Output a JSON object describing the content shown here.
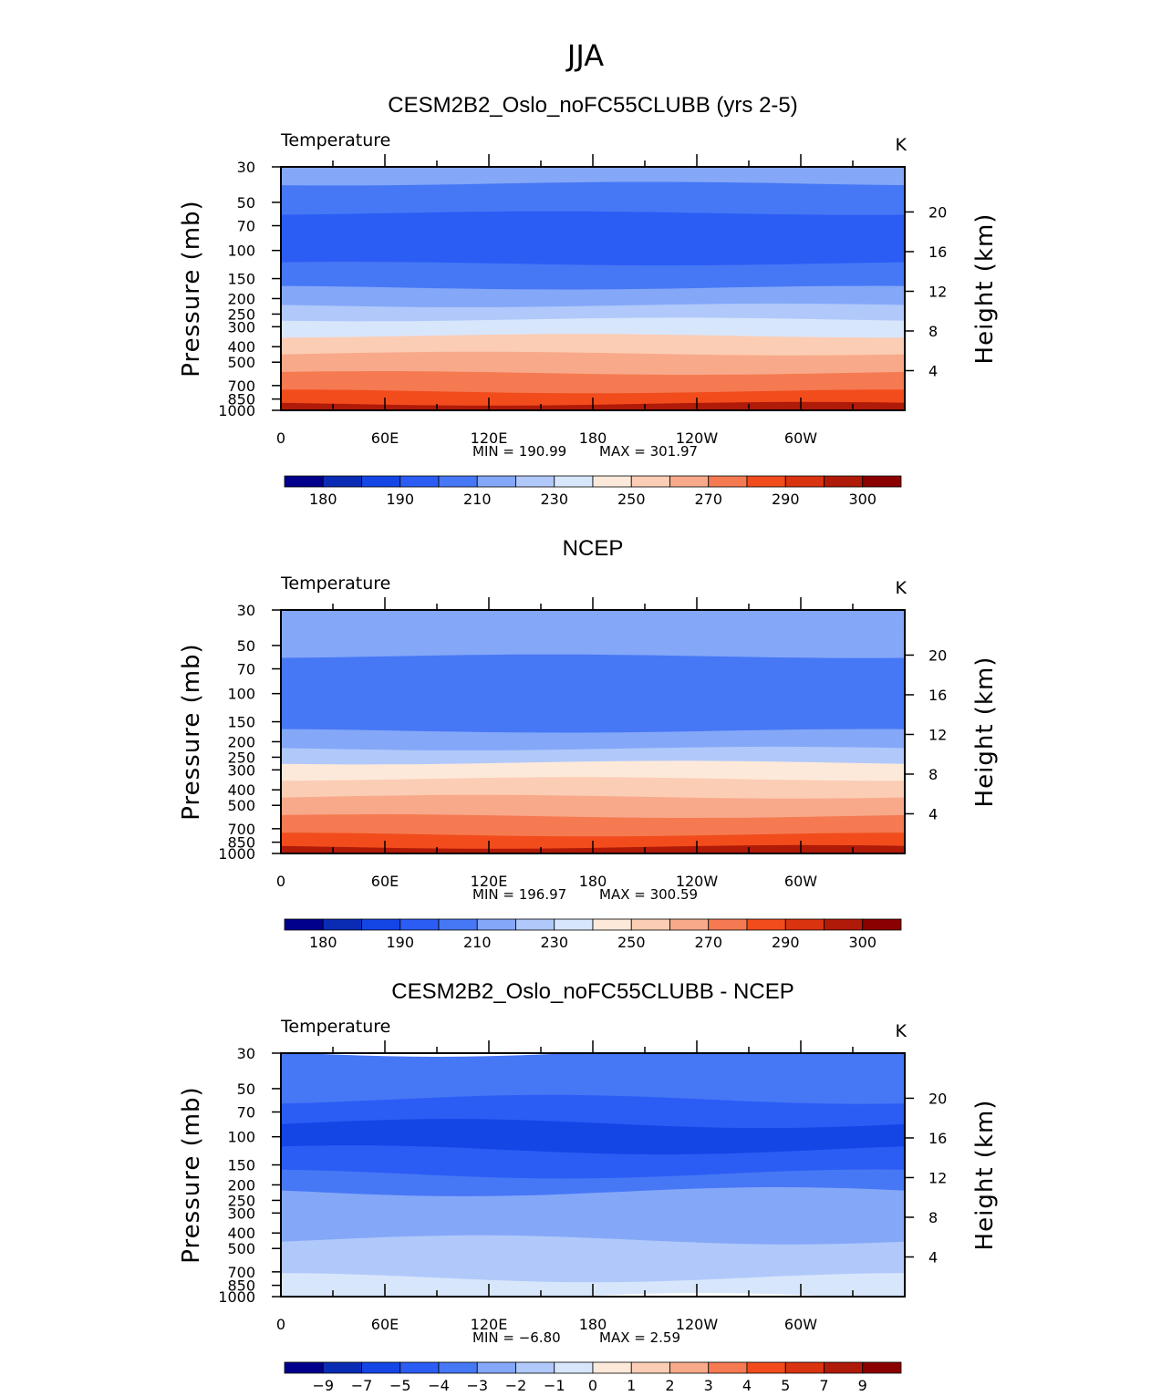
{
  "page": {
    "title": "JJA"
  },
  "chart_data": [
    {
      "type": "contour",
      "title": "CESM2B2_Oslo_noFC55CLUBB (yrs 2-5)",
      "left_label": "Temperature",
      "right_label": "K",
      "ylabel": "Pressure (mb)",
      "ylabel_right": "Height (km)",
      "x_ticks": [
        "0",
        "60E",
        "120E",
        "180",
        "120W",
        "60W"
      ],
      "y_ticks": [
        "30",
        "50",
        "70",
        "100",
        "150",
        "200",
        "250",
        "300",
        "400",
        "500",
        "700",
        "850",
        "1000"
      ],
      "y_right_ticks": [
        "20",
        "16",
        "12",
        "8",
        "4"
      ],
      "min_label": "MIN = 190.99",
      "max_label": "MAX = 301.97",
      "min": 190.99,
      "max": 301.97,
      "colorbar_labels": [
        "180",
        "190",
        "210",
        "230",
        "250",
        "270",
        "290",
        "300"
      ],
      "levels_by_pressure": [
        {
          "p": 30,
          "t": 214
        },
        {
          "p": 50,
          "t": 208
        },
        {
          "p": 70,
          "t": 198
        },
        {
          "p": 100,
          "t": 196
        },
        {
          "p": 150,
          "t": 206
        },
        {
          "p": 200,
          "t": 214
        },
        {
          "p": 250,
          "t": 226
        },
        {
          "p": 300,
          "t": 238
        },
        {
          "p": 400,
          "t": 252
        },
        {
          "p": 500,
          "t": 262
        },
        {
          "p": 700,
          "t": 276
        },
        {
          "p": 850,
          "t": 288
        },
        {
          "p": 1000,
          "t": 296
        }
      ]
    },
    {
      "type": "contour",
      "title": "NCEP",
      "left_label": "Temperature",
      "right_label": "K",
      "ylabel": "Pressure (mb)",
      "ylabel_right": "Height (km)",
      "x_ticks": [
        "0",
        "60E",
        "120E",
        "180",
        "120W",
        "60W"
      ],
      "y_ticks": [
        "30",
        "50",
        "70",
        "100",
        "150",
        "200",
        "250",
        "300",
        "400",
        "500",
        "700",
        "850",
        "1000"
      ],
      "y_right_ticks": [
        "20",
        "16",
        "12",
        "8",
        "4"
      ],
      "min_label": "MIN = 196.97",
      "max_label": "MAX = 300.59",
      "min": 196.97,
      "max": 300.59,
      "colorbar_labels": [
        "180",
        "190",
        "210",
        "230",
        "250",
        "270",
        "290",
        "300"
      ],
      "levels_by_pressure": [
        {
          "p": 30,
          "t": 218
        },
        {
          "p": 50,
          "t": 210
        },
        {
          "p": 70,
          "t": 206
        },
        {
          "p": 100,
          "t": 200
        },
        {
          "p": 150,
          "t": 207
        },
        {
          "p": 200,
          "t": 216
        },
        {
          "p": 250,
          "t": 228
        },
        {
          "p": 300,
          "t": 240
        },
        {
          "p": 400,
          "t": 254
        },
        {
          "p": 500,
          "t": 264
        },
        {
          "p": 700,
          "t": 278
        },
        {
          "p": 850,
          "t": 289
        },
        {
          "p": 1000,
          "t": 296
        }
      ]
    },
    {
      "type": "contour",
      "title": "CESM2B2_Oslo_noFC55CLUBB - NCEP",
      "left_label": "Temperature",
      "right_label": "K",
      "ylabel": "Pressure (mb)",
      "ylabel_right": "Height (km)",
      "x_ticks": [
        "0",
        "60E",
        "120E",
        "180",
        "120W",
        "60W"
      ],
      "y_ticks": [
        "30",
        "50",
        "70",
        "100",
        "150",
        "200",
        "250",
        "300",
        "400",
        "500",
        "700",
        "850",
        "1000"
      ],
      "y_right_ticks": [
        "20",
        "16",
        "12",
        "8",
        "4"
      ],
      "min_label": "MIN = −6.80",
      "max_label": "MAX = 2.59",
      "min": -6.8,
      "max": 2.59,
      "colorbar_labels": [
        "−9",
        "−7",
        "−5",
        "−4",
        "−3",
        "−2",
        "−1",
        "0",
        "1",
        "2",
        "3",
        "4",
        "5",
        "7",
        "9"
      ],
      "levels_by_pressure": [
        {
          "p": 30,
          "t": -3.5
        },
        {
          "p": 50,
          "t": -3.5
        },
        {
          "p": 70,
          "t": -4.2
        },
        {
          "p": 100,
          "t": -5.5
        },
        {
          "p": 150,
          "t": -4.8
        },
        {
          "p": 200,
          "t": -3.6
        },
        {
          "p": 250,
          "t": -2.8
        },
        {
          "p": 300,
          "t": -2.5
        },
        {
          "p": 400,
          "t": -2.2
        },
        {
          "p": 500,
          "t": -1.6
        },
        {
          "p": 700,
          "t": -1.2
        },
        {
          "p": 850,
          "t": -0.8
        },
        {
          "p": 1000,
          "t": -0.5
        }
      ]
    }
  ],
  "colormap": {
    "abs_edges": [
      175,
      180,
      185,
      190,
      200,
      210,
      220,
      230,
      240,
      250,
      260,
      270,
      280,
      290,
      295,
      300,
      305
    ],
    "diff_edges": [
      -11,
      -9,
      -8,
      -7,
      -6,
      -5,
      -4.5,
      -4,
      -3.5,
      -3,
      -2.5,
      -2,
      -1.5,
      -1,
      -0.5,
      0,
      0.5,
      1,
      1.5,
      2,
      2.5,
      3,
      3.5,
      4,
      4.5,
      5,
      6,
      7,
      8,
      9,
      11
    ],
    "colors": [
      "#00008c",
      "#0a2cb4",
      "#1446e6",
      "#2b5df5",
      "#4677f5",
      "#84a7f8",
      "#b0c9fa",
      "#d8e6fc",
      "#fde9da",
      "#fbcdb5",
      "#f8a98a",
      "#f57a52",
      "#f24c1c",
      "#d93310",
      "#b01a08",
      "#8b0000"
    ]
  }
}
